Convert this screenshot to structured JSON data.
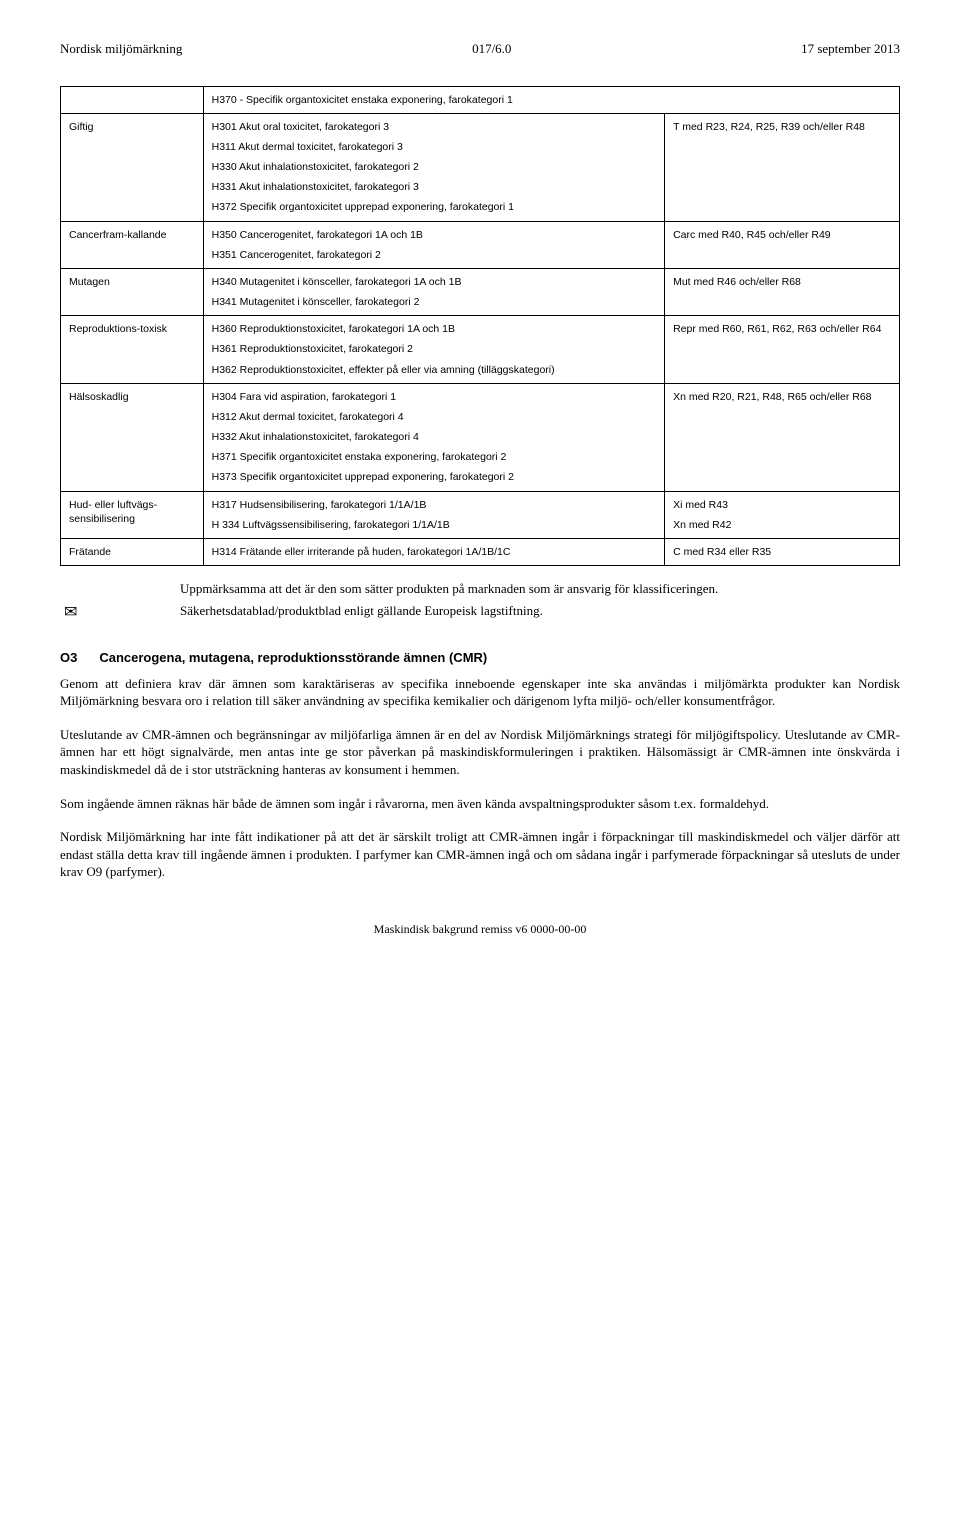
{
  "header": {
    "left": "Nordisk miljömärkning",
    "mid": "017/6.0",
    "right": "17 september 2013"
  },
  "table": {
    "rows": [
      {
        "c1": "",
        "c2": [
          "H370 - Specifik organtoxicitet enstaka exponering, farokategori 1"
        ],
        "span": true
      },
      {
        "c1": "Giftig",
        "c2": [
          "H301 Akut oral toxicitet, farokategori 3",
          "H311 Akut dermal toxicitet, farokategori 3",
          "H330 Akut inhalationstoxicitet, farokategori 2",
          "H331 Akut inhalationstoxicitet, farokategori 3",
          "H372 Specifik organtoxicitet upprepad exponering, farokategori 1"
        ],
        "c3": "T med R23, R24, R25, R39 och/eller R48"
      },
      {
        "c1": "Cancerfram-kallande",
        "c2": [
          "H350 Cancerogenitet, farokategori 1A och 1B",
          "H351 Cancerogenitet, farokategori 2"
        ],
        "c3": "Carc med R40, R45 och/eller R49"
      },
      {
        "c1": "Mutagen",
        "c2": [
          "H340 Mutagenitet i könsceller, farokategori 1A och 1B",
          "H341 Mutagenitet i könsceller, farokategori 2"
        ],
        "c3": "Mut med R46 och/eller R68"
      },
      {
        "c1": "Reproduktions-toxisk",
        "c2": [
          "H360 Reproduktionstoxicitet, farokategori 1A och 1B",
          "H361 Reproduktionstoxicitet, farokategori 2",
          "H362 Reproduktionstoxicitet, effekter på eller via amning (tilläggskategori)"
        ],
        "c3": "Repr med R60, R61, R62, R63 och/eller R64"
      },
      {
        "c1": "Hälsoskadlig",
        "c2": [
          "H304 Fara vid aspiration, farokategori 1",
          "H312 Akut dermal toxicitet, farokategori 4",
          "H332 Akut inhalationstoxicitet, farokategori 4",
          "H371 Specifik organtoxicitet enstaka exponering, farokategori 2",
          "H373 Specifik organtoxicitet upprepad exponering, farokategori 2"
        ],
        "c3": "Xn med R20, R21, R48, R65 och/eller R68"
      },
      {
        "c1": "Hud- eller luftvägs-sensibilisering",
        "c2": [
          "H317 Hudsensibilisering, farokategori 1/1A/1B",
          "H 334 Luftvägssensibilisering, farokategori 1/1A/1B"
        ],
        "c3": "Xi med R43\nXn med R42"
      },
      {
        "c1": "Frätande",
        "c2": [
          "H314 Frätande eller irriterande på huden, farokategori 1A/1B/1C"
        ],
        "c3": "C med R34 eller R35"
      }
    ]
  },
  "after_table": "Uppmärksamma att det är den som sätter produkten på marknaden som är ansvarig för klassificeringen.",
  "envelope_line": "Säkerhetsdatablad/produktblad enligt gällande Europeisk lagstiftning.",
  "section": {
    "code": "O3",
    "title": "Cancerogena, mutagena, reproduktionsstörande ämnen (CMR)"
  },
  "paragraphs": [
    "Genom att definiera krav där ämnen som karaktäriseras av specifika inneboende egenskaper inte ska användas i miljömärkta produkter kan Nordisk Miljömärkning besvara oro i relation till säker användning av specifika kemikalier och därigenom lyfta miljö- och/eller konsumentfrågor.",
    "Uteslutande av CMR-ämnen och begränsningar av miljöfarliga ämnen är en del av Nordisk Miljömärknings strategi för miljögiftspolicy. Uteslutande av CMR-ämnen har ett högt signalvärde, men antas inte ge stor påverkan på maskindiskformuleringen i praktiken. Hälsomässigt är CMR-ämnen inte önskvärda i maskindiskmedel då de i stor utsträckning hanteras av konsument i hemmen.",
    "Som ingående ämnen räknas här både de ämnen som ingår i råvarorna, men även kända avspaltningsprodukter såsom t.ex. formaldehyd.",
    "Nordisk Miljömärkning har inte fått indikationer på att det är särskilt troligt att CMR-ämnen ingår i förpackningar till maskindiskmedel och väljer därför att endast ställa detta krav till ingående ämnen i produkten. I parfymer kan CMR-ämnen ingå och om sådana ingår i parfymerade förpackningar så utesluts de under krav O9 (parfymer)."
  ],
  "footer": "Maskindisk bakgrund remiss v6 0000-00-00"
}
